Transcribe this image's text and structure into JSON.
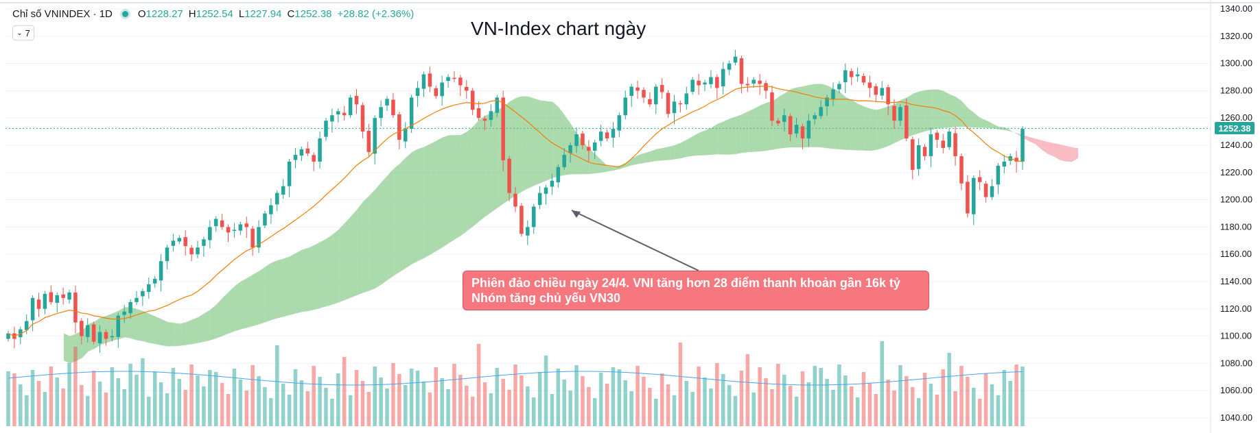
{
  "chart_data": {
    "type": "candlestick",
    "title": "VN-Index chart ngày",
    "symbol_label": "Chỉ số VNINDEX · 1D",
    "ohlc_summary": {
      "o_label": "O",
      "o": "1228.27",
      "h_label": "H",
      "h": "1252.54",
      "l_label": "L",
      "l": "1227.94",
      "c_label": "C",
      "c": "1252.38",
      "change": "+28.82 (+2.36%)"
    },
    "collapse_label": "7",
    "last_price_label": "1252.38",
    "last_price": 1252.38,
    "y_ticks": [
      "1340.00",
      "1320.00",
      "1300.00",
      "1280.00",
      "1260.00",
      "1240.00",
      "1220.00",
      "1200.00",
      "1180.00",
      "1160.00",
      "1140.00",
      "1120.00",
      "1100.00",
      "1080.00",
      "1060.00",
      "1040.00"
    ],
    "ylim": [
      1035,
      1342
    ],
    "annotation_lines": [
      "Phiên đảo chiều ngày 24/4. VNI tăng hơn 28 điểm thanh khoản gần 16k tỷ",
      "Nhóm tăng chủ yếu VN30"
    ],
    "candles_close": [
      1102,
      1098,
      1105,
      1111,
      1128,
      1120,
      1131,
      1125,
      1130,
      1128,
      1132,
      1110,
      1100,
      1108,
      1096,
      1103,
      1098,
      1100,
      1115,
      1118,
      1125,
      1128,
      1133,
      1138,
      1142,
      1155,
      1165,
      1170,
      1172,
      1166,
      1160,
      1165,
      1171,
      1180,
      1186,
      1180,
      1176,
      1178,
      1182,
      1180,
      1165,
      1180,
      1190,
      1196,
      1205,
      1210,
      1228,
      1233,
      1237,
      1234,
      1228,
      1245,
      1258,
      1262,
      1265,
      1262,
      1275,
      1270,
      1250,
      1235,
      1260,
      1268,
      1274,
      1262,
      1244,
      1252,
      1275,
      1282,
      1292,
      1283,
      1276,
      1286,
      1290,
      1289,
      1284,
      1280,
      1266,
      1260,
      1258,
      1265,
      1275,
      1229,
      1205,
      1195,
      1175,
      1180,
      1195,
      1205,
      1209,
      1214,
      1224,
      1233,
      1240,
      1248,
      1240,
      1236,
      1242,
      1250,
      1245,
      1252,
      1262,
      1275,
      1283,
      1280,
      1275,
      1270,
      1283,
      1279,
      1263,
      1272,
      1270,
      1278,
      1288,
      1284,
      1286,
      1290,
      1282,
      1296,
      1300,
      1305,
      1285,
      1284,
      1288,
      1285,
      1280,
      1258,
      1256,
      1262,
      1248,
      1255,
      1245,
      1258,
      1262,
      1268,
      1275,
      1281,
      1285,
      1295,
      1290,
      1292,
      1286,
      1282,
      1277,
      1282,
      1270,
      1258,
      1268,
      1245,
      1222,
      1240,
      1232,
      1248,
      1244,
      1238,
      1250,
      1232,
      1212,
      1190,
      1216,
      1213,
      1202,
      1210,
      1225,
      1228,
      1232,
      1228,
      1252
    ]
  }
}
